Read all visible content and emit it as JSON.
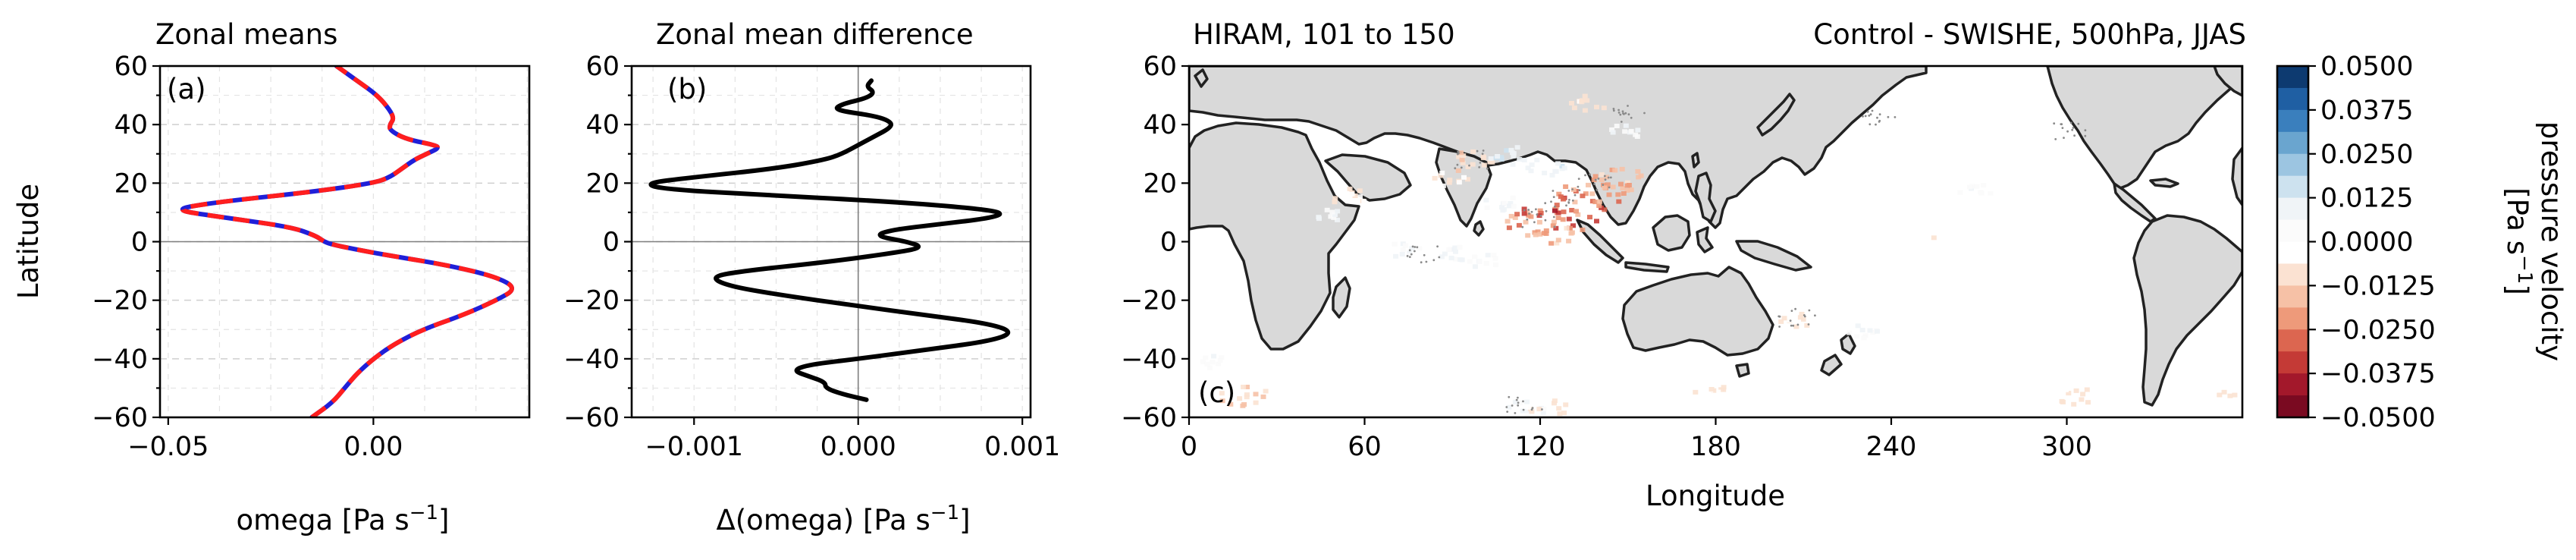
{
  "chart_data": [
    {
      "type": "line",
      "title": "Zonal means",
      "panel_label": "(a)",
      "xlabel": "omega [Pa s",
      "xlabel_exp": "−1",
      "xlabel_end": "]",
      "ylabel": "Latitude",
      "xlim": [
        -0.052,
        0.038
      ],
      "ylim": [
        -60,
        60
      ],
      "xticks": [
        "−0.05",
        "0.00"
      ],
      "xtick_values": [
        -0.05,
        0.0
      ],
      "yticks": [
        "−60",
        "−40",
        "−20",
        "0",
        "20",
        "40",
        "60"
      ],
      "ytick_values": [
        -60,
        -40,
        -20,
        0,
        20,
        40,
        60
      ],
      "grid": true,
      "colors": {
        "series_a": "#1f1fd8",
        "series_b": "#ff1e1e"
      },
      "series": [
        {
          "style": "solid",
          "color": "#1f1fd8",
          "y": [
            -60,
            -55,
            -50,
            -45,
            -40,
            -35,
            -30,
            -25,
            -20,
            -16,
            -12,
            -8,
            -5,
            -3,
            -1,
            0,
            2,
            5,
            8,
            10,
            11,
            12,
            14,
            17,
            20,
            22,
            25,
            28,
            30,
            32,
            33,
            35,
            38,
            40,
            42,
            45,
            50,
            55,
            58,
            60
          ],
          "x": [
            -0.015,
            -0.01,
            -0.007,
            -0.004,
            0.0,
            0.005,
            0.012,
            0.022,
            0.03,
            0.035,
            0.03,
            0.018,
            0.005,
            -0.003,
            -0.01,
            -0.012,
            -0.014,
            -0.02,
            -0.035,
            -0.045,
            -0.047,
            -0.045,
            -0.035,
            -0.015,
            0.0,
            0.004,
            0.007,
            0.01,
            0.013,
            0.016,
            0.015,
            0.008,
            0.004,
            0.004,
            0.005,
            0.004,
            0.001,
            -0.004,
            -0.007,
            -0.009
          ]
        },
        {
          "style": "dashed",
          "color": "#ff1e1e",
          "y": [
            -60,
            -55,
            -50,
            -45,
            -40,
            -35,
            -30,
            -25,
            -20,
            -16,
            -12,
            -8,
            -5,
            -3,
            -1,
            0,
            2,
            5,
            8,
            10,
            11,
            12,
            14,
            17,
            20,
            22,
            25,
            28,
            30,
            32,
            33,
            35,
            38,
            40,
            42,
            45,
            50,
            55,
            58,
            60
          ],
          "x": [
            -0.015,
            -0.01,
            -0.007,
            -0.004,
            0.0,
            0.005,
            0.012,
            0.022,
            0.03,
            0.035,
            0.03,
            0.018,
            0.005,
            -0.003,
            -0.01,
            -0.012,
            -0.014,
            -0.02,
            -0.035,
            -0.045,
            -0.047,
            -0.045,
            -0.035,
            -0.015,
            0.0,
            0.004,
            0.007,
            0.01,
            0.013,
            0.016,
            0.015,
            0.008,
            0.004,
            0.004,
            0.005,
            0.004,
            0.001,
            -0.004,
            -0.007,
            -0.009
          ]
        }
      ]
    },
    {
      "type": "line",
      "title": "Zonal mean difference",
      "panel_label": "(b)",
      "xlabel": "Δ(omega) [Pa s",
      "xlabel_exp": "−1",
      "xlabel_end": "]",
      "xlim": [
        -0.00138,
        0.00105
      ],
      "ylim": [
        -60,
        60
      ],
      "xticks": [
        "−0.001",
        "0.000",
        "0.001"
      ],
      "xtick_values": [
        -0.001,
        0.0,
        0.001
      ],
      "yticks": [
        "−60",
        "−40",
        "−20",
        "0",
        "20",
        "40",
        "60"
      ],
      "ytick_values": [
        -60,
        -40,
        -20,
        0,
        20,
        40,
        60
      ],
      "grid": true,
      "series": [
        {
          "color": "#000000",
          "y": [
            -54,
            -52,
            -50,
            -48,
            -46,
            -44,
            -42,
            -40,
            -37,
            -34,
            -31,
            -28,
            -25,
            -22,
            -18,
            -15,
            -12,
            -10,
            -7,
            -4,
            -2,
            0,
            2,
            4,
            6,
            8,
            10,
            12,
            14,
            16,
            18,
            20,
            22,
            25,
            28,
            30,
            33,
            36,
            39,
            41,
            43,
            45,
            47,
            49,
            51,
            53,
            55
          ],
          "x": [
            5e-05,
            -0.0001,
            -0.0002,
            -0.0002,
            -0.0003,
            -0.0004,
            -0.0003,
            0.0,
            0.0004,
            0.0008,
            0.00095,
            0.0008,
            0.0004,
            0.0,
            -0.0005,
            -0.0008,
            -0.0009,
            -0.0007,
            -0.0002,
            0.0002,
            0.0004,
            0.0003,
            0.0001,
            0.0002,
            0.0005,
            0.0008,
            0.0009,
            0.0006,
            0.0001,
            -0.0006,
            -0.0012,
            -0.0013,
            -0.001,
            -0.0005,
            -0.0002,
            -0.0001,
            0.0,
            0.0001,
            0.0002,
            0.0002,
            0.0001,
            -0.00015,
            -0.0001,
            5e-05,
            0.0001,
            5e-05,
            8e-05
          ]
        }
      ]
    },
    {
      "type": "heatmap",
      "title_left": "HIRAM, 101 to 150",
      "title_right": "Control - SWISHE, 500hPa, JJAS",
      "panel_label": "(c)",
      "xlabel": "Longitude",
      "xlim": [
        0,
        360
      ],
      "ylim": [
        -60,
        60
      ],
      "xticks": [
        "0",
        "60",
        "120",
        "180",
        "240",
        "300"
      ],
      "xtick_values": [
        0,
        60,
        120,
        180,
        240,
        300
      ],
      "yticks": [
        "−60",
        "−40",
        "−20",
        "0",
        "20",
        "40",
        "60"
      ],
      "ytick_values": [
        -60,
        -40,
        -20,
        0,
        20,
        40,
        60
      ],
      "colorbar": {
        "label": "pressure velocity",
        "units": "[Pa s",
        "units_exp": "−1",
        "units_end": "]",
        "ticks": [
          "0.0500",
          "0.0375",
          "0.0250",
          "0.0125",
          "0.0000",
          "−0.0125",
          "−0.0250",
          "−0.0375",
          "−0.0500"
        ],
        "colors": [
          "#0d3a70",
          "#1f5fa3",
          "#3a7fbd",
          "#6aa5cf",
          "#9cc5e1",
          "#cde2ef",
          "#f0f4f7",
          "#fbfbfb",
          "#ffffff",
          "#fbe2d2",
          "#f6c1a6",
          "#ee9a7a",
          "#dc6650",
          "#c43a36",
          "#a3182b",
          "#7a0a21"
        ]
      },
      "anomaly_patches": [
        {
          "lon": 118,
          "lat": 8,
          "value": -0.03
        },
        {
          "lon": 124,
          "lat": 4,
          "value": -0.02
        },
        {
          "lon": 128,
          "lat": 12,
          "value": -0.035
        },
        {
          "lon": 138,
          "lat": 18,
          "value": -0.03
        },
        {
          "lon": 145,
          "lat": 22,
          "value": -0.02
        },
        {
          "lon": 96,
          "lat": 28,
          "value": -0.015
        },
        {
          "lon": 88,
          "lat": 22,
          "value": -0.01
        },
        {
          "lon": 110,
          "lat": 30,
          "value": 0.015
        },
        {
          "lon": 120,
          "lat": 26,
          "value": 0.012
        },
        {
          "lon": 106,
          "lat": 14,
          "value": 0.01
        },
        {
          "lon": 72,
          "lat": -2,
          "value": 0.008
        },
        {
          "lon": 90,
          "lat": -4,
          "value": 0.01
        },
        {
          "lon": 100,
          "lat": -6,
          "value": 0.008
        },
        {
          "lon": 54,
          "lat": 16,
          "value": -0.01
        },
        {
          "lon": 46,
          "lat": 10,
          "value": 0.008
        },
        {
          "lon": 148,
          "lat": 38,
          "value": 0.008
        },
        {
          "lon": 136,
          "lat": 48,
          "value": -0.01
        },
        {
          "lon": 208,
          "lat": -26,
          "value": -0.01
        },
        {
          "lon": 230,
          "lat": -30,
          "value": 0.008
        },
        {
          "lon": 115,
          "lat": -56,
          "value": 0.01
        },
        {
          "lon": 122,
          "lat": -56,
          "value": -0.01
        },
        {
          "lon": 178,
          "lat": -50,
          "value": -0.008
        },
        {
          "lon": 18,
          "lat": -52,
          "value": -0.015
        },
        {
          "lon": 6,
          "lat": -40,
          "value": 0.006
        },
        {
          "lon": 302,
          "lat": -52,
          "value": -0.01
        },
        {
          "lon": 358,
          "lat": -52,
          "value": -0.01
        },
        {
          "lon": 268,
          "lat": 18,
          "value": 0.006
        },
        {
          "lon": 252,
          "lat": 4,
          "value": -0.006
        }
      ]
    }
  ]
}
